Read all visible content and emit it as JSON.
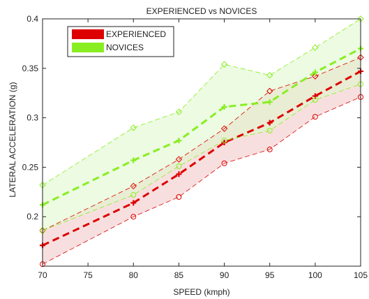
{
  "chart_data": {
    "type": "line",
    "title": "EXPERIENCED vs NOVICES",
    "xlabel": "SPEED (kmph)",
    "ylabel": "LATERAL ACCELERATION (g)",
    "xlim": [
      70,
      105
    ],
    "ylim": [
      0.15,
      0.4
    ],
    "xticks": [
      70,
      75,
      80,
      85,
      90,
      95,
      100,
      105
    ],
    "yticks": [
      0.2,
      0.25,
      0.3,
      0.35,
      0.4
    ],
    "ytick_labels": [
      "0.2",
      "0.25",
      "0.3",
      "0.35",
      "0.4"
    ],
    "legend_position": "top-left",
    "x": [
      70,
      80,
      85,
      90,
      95,
      100,
      105
    ],
    "series": [
      {
        "name": "EXPERIENCED",
        "color": "#dd0000",
        "band_color": "#f3c4c4",
        "mean": [
          0.171,
          0.214,
          0.243,
          0.275,
          0.295,
          0.322,
          0.347
        ],
        "upper": [
          0.186,
          0.231,
          0.258,
          0.289,
          0.327,
          0.342,
          0.361
        ],
        "lower": [
          0.152,
          0.2,
          0.22,
          0.254,
          0.268,
          0.301,
          0.321
        ]
      },
      {
        "name": "NOVICES",
        "color": "#88ee22",
        "band_color": "#ddf7c8",
        "mean": [
          0.212,
          0.257,
          0.277,
          0.311,
          0.316,
          0.346,
          0.37
        ],
        "upper": [
          0.232,
          0.29,
          0.306,
          0.354,
          0.343,
          0.371,
          0.4
        ],
        "lower": [
          0.186,
          0.222,
          0.251,
          0.277,
          0.287,
          0.318,
          0.334
        ]
      }
    ]
  }
}
